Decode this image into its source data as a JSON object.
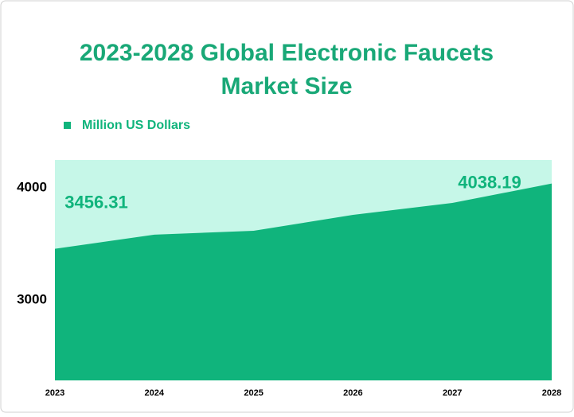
{
  "chart_data": {
    "type": "area",
    "title": "2023-2028 Global Electronic Faucets",
    "title_line2": "Market Size",
    "x": [
      "2023",
      "2024",
      "2025",
      "2026",
      "2027",
      "2028"
    ],
    "series": [
      {
        "name": "Million US Dollars",
        "color": "#10b47c",
        "values": [
          3456.31,
          3582,
          3617,
          3759,
          3865,
          4038.19
        ]
      }
    ],
    "data_labels": [
      0,
      5
    ],
    "background_color": "#c6f7e8",
    "ylim": [
      2284,
      4248
    ],
    "yticks": [
      3000,
      4000
    ],
    "legend": "top-left",
    "grid": false
  }
}
